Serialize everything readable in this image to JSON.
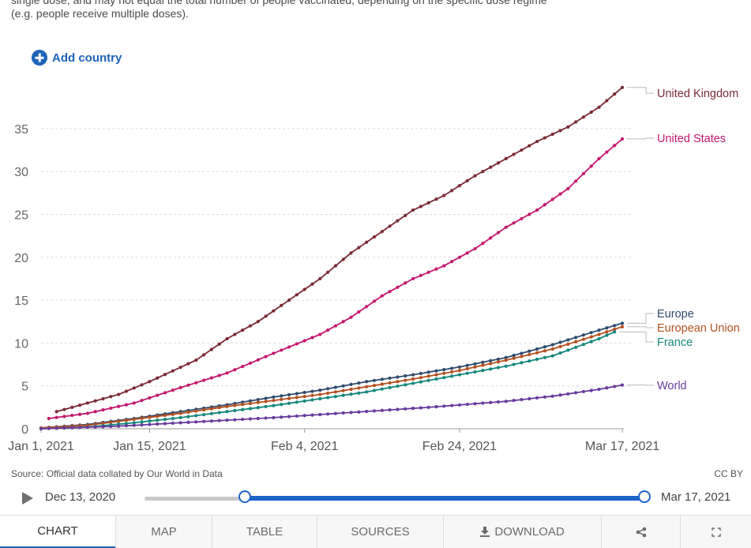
{
  "note": {
    "line1": "single dose, and may not equal the total number of people vaccinated, depending on the specific dose regime",
    "line2": "(e.g. people receive multiple doses)."
  },
  "add_country_label": "Add country",
  "source_text": "Source: Official data collated by Our World in Data",
  "license_text": "CC BY",
  "timeline": {
    "start_label": "Dec 13, 2020",
    "end_label": "Mar 17, 2021",
    "range_start_fraction": 0.2,
    "range_end_fraction": 1.0
  },
  "tabs": [
    "CHART",
    "MAP",
    "TABLE",
    "SOURCES",
    "DOWNLOAD",
    "share-icon",
    "fullscreen-icon"
  ],
  "tab_labels": {
    "chart": "CHART",
    "map": "MAP",
    "table": "TABLE",
    "sources": "SOURCES",
    "download": "DOWNLOAD"
  },
  "colors": {
    "accent": "#1d63b8",
    "uk": "#7b2a35",
    "us": "#c3186e",
    "europe": "#2f4b6e",
    "eu": "#b5501f",
    "france": "#14877c",
    "world": "#6a3a9e"
  },
  "chart_data": {
    "type": "line",
    "x_start": "2021-01-01",
    "x_end": "2021-03-17",
    "xticks": [
      "Jan 1, 2021",
      "Jan 15, 2021",
      "Feb 4, 2021",
      "Feb 24, 2021",
      "Mar 17, 2021"
    ],
    "xtick_days": [
      0,
      14,
      34,
      54,
      75
    ],
    "yticks": [
      0,
      5,
      10,
      15,
      20,
      25,
      30,
      35
    ],
    "ylim": [
      0,
      40
    ],
    "grid": true,
    "series": [
      {
        "name": "United Kingdom",
        "color": "#7b2a35",
        "start_day": 2,
        "end_value": 39.8,
        "points": [
          [
            2,
            2.0
          ],
          [
            10,
            4.0
          ],
          [
            14,
            5.5
          ],
          [
            20,
            8.0
          ],
          [
            24,
            10.5
          ],
          [
            28,
            12.5
          ],
          [
            32,
            15.0
          ],
          [
            36,
            17.5
          ],
          [
            40,
            20.5
          ],
          [
            44,
            23.0
          ],
          [
            48,
            25.5
          ],
          [
            52,
            27.2
          ],
          [
            56,
            29.5
          ],
          [
            60,
            31.5
          ],
          [
            64,
            33.5
          ],
          [
            68,
            35.2
          ],
          [
            72,
            37.5
          ],
          [
            75,
            39.8
          ]
        ]
      },
      {
        "name": "United States",
        "color": "#c3186e",
        "start_day": 1,
        "end_value": 33.8,
        "points": [
          [
            1,
            1.2
          ],
          [
            6,
            1.8
          ],
          [
            12,
            3.0
          ],
          [
            18,
            4.8
          ],
          [
            24,
            6.5
          ],
          [
            30,
            8.8
          ],
          [
            36,
            11.0
          ],
          [
            40,
            13.0
          ],
          [
            44,
            15.5
          ],
          [
            48,
            17.5
          ],
          [
            52,
            19.0
          ],
          [
            56,
            21.0
          ],
          [
            60,
            23.5
          ],
          [
            64,
            25.5
          ],
          [
            68,
            28.0
          ],
          [
            72,
            31.5
          ],
          [
            75,
            33.8
          ]
        ]
      },
      {
        "name": "Europe",
        "color": "#2f4b6e",
        "start_day": 0,
        "end_value": 12.3,
        "points": [
          [
            0,
            0.1
          ],
          [
            6,
            0.5
          ],
          [
            12,
            1.2
          ],
          [
            18,
            2.0
          ],
          [
            24,
            2.8
          ],
          [
            30,
            3.7
          ],
          [
            36,
            4.5
          ],
          [
            42,
            5.5
          ],
          [
            48,
            6.3
          ],
          [
            54,
            7.2
          ],
          [
            60,
            8.3
          ],
          [
            66,
            9.8
          ],
          [
            72,
            11.5
          ],
          [
            75,
            12.3
          ]
        ]
      },
      {
        "name": "European Union",
        "color": "#b5501f",
        "start_day": 0,
        "end_value": 11.9,
        "points": [
          [
            0,
            0.1
          ],
          [
            6,
            0.4
          ],
          [
            12,
            1.1
          ],
          [
            18,
            1.8
          ],
          [
            24,
            2.6
          ],
          [
            30,
            3.3
          ],
          [
            36,
            4.0
          ],
          [
            42,
            4.9
          ],
          [
            48,
            5.8
          ],
          [
            54,
            6.8
          ],
          [
            60,
            8.0
          ],
          [
            66,
            9.3
          ],
          [
            72,
            11.0
          ],
          [
            75,
            11.9
          ]
        ]
      },
      {
        "name": "France",
        "color": "#14877c",
        "start_day": 0,
        "end_value": 11.3,
        "points": [
          [
            0,
            0.0
          ],
          [
            6,
            0.2
          ],
          [
            12,
            0.7
          ],
          [
            18,
            1.3
          ],
          [
            24,
            2.0
          ],
          [
            30,
            2.7
          ],
          [
            36,
            3.5
          ],
          [
            42,
            4.3
          ],
          [
            48,
            5.3
          ],
          [
            54,
            6.3
          ],
          [
            60,
            7.3
          ],
          [
            66,
            8.5
          ],
          [
            72,
            10.5
          ],
          [
            74,
            11.3
          ]
        ]
      },
      {
        "name": "World",
        "color": "#6a3a9e",
        "start_day": 0,
        "end_value": 5.1,
        "points": [
          [
            0,
            0.0
          ],
          [
            10,
            0.3
          ],
          [
            20,
            0.8
          ],
          [
            30,
            1.3
          ],
          [
            40,
            1.9
          ],
          [
            50,
            2.5
          ],
          [
            60,
            3.2
          ],
          [
            66,
            3.8
          ],
          [
            72,
            4.6
          ],
          [
            75,
            5.1
          ]
        ]
      }
    ]
  }
}
